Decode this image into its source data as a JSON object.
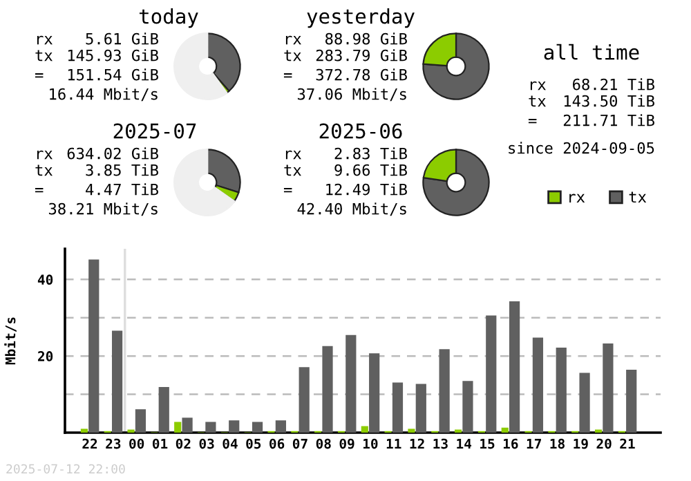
{
  "chart_data": [
    {
      "type": "donut",
      "title": "today",
      "categories": [
        null,
        null,
        null
      ],
      "values": [
        38.5,
        1.5,
        60
      ],
      "colors": [
        "#606060",
        "#8ccc00",
        "#efefef"
      ],
      "annotations": [
        "rx",
        "5.61 GiB",
        "tx",
        "145.93 GiB",
        "=",
        "151.54 GiB",
        "16.44 Mbit/s"
      ]
    },
    {
      "type": "donut",
      "title": "yesterday",
      "categories": [
        null,
        null
      ],
      "values": [
        76.1,
        23.9
      ],
      "colors": [
        "#606060",
        "#8ccc00"
      ],
      "annotations": [
        "rx",
        "88.98 GiB",
        "tx",
        "283.79 GiB",
        "=",
        "372.78 GiB",
        "37.06 Mbit/s"
      ]
    },
    {
      "type": "other",
      "title": "all time",
      "annotations": [
        "rx",
        "68.21 TiB",
        "tx",
        "143.50 TiB",
        "=",
        "211.71 TiB",
        "since 2024-09-05"
      ]
    },
    {
      "type": "donut",
      "title": "2025-07",
      "categories": [
        null,
        null,
        null
      ],
      "values": [
        29.9,
        4.8,
        65.3
      ],
      "colors": [
        "#606060",
        "#8ccc00",
        "#efefef"
      ],
      "annotations": [
        "rx",
        "634.02 GiB",
        "tx",
        "3.85 TiB",
        "=",
        "4.47 TiB",
        "38.21 Mbit/s"
      ]
    },
    {
      "type": "donut",
      "title": "2025-06",
      "categories": [
        null,
        null
      ],
      "values": [
        77.3,
        22.7
      ],
      "colors": [
        "#606060",
        "#8ccc00"
      ],
      "annotations": [
        "rx",
        "2.83 TiB",
        "tx",
        "9.66 TiB",
        "=",
        "12.49 TiB",
        "42.40 Mbit/s"
      ]
    },
    {
      "type": "bar",
      "ylabel": "Mbit/s",
      "categories": [
        "22",
        "23",
        "00",
        "01",
        "02",
        "03",
        "04",
        "05",
        "06",
        "07",
        "08",
        "09",
        "10",
        "11",
        "12",
        "13",
        "14",
        "15",
        "16",
        "17",
        "18",
        "19",
        "20",
        "21"
      ],
      "series": [
        {
          "name": "rx",
          "color": "#8ccc00",
          "values": [
            1.0,
            0.4,
            0.8,
            0.1,
            2.8,
            0.1,
            0.1,
            0.1,
            0.4,
            0.4,
            0.4,
            0.4,
            1.7,
            0.4,
            1.0,
            0.4,
            0.8,
            0.4,
            1.3,
            0.4,
            0.4,
            0.4,
            0.8,
            0.4
          ]
        },
        {
          "name": "tx",
          "color": "#606060",
          "values": [
            45.2,
            26.6,
            6.1,
            11.9,
            3.9,
            2.8,
            3.2,
            2.8,
            3.2,
            17.1,
            22.6,
            25.5,
            20.7,
            13.1,
            12.7,
            21.8,
            13.5,
            30.6,
            34.3,
            24.8,
            22.2,
            15.6,
            23.3,
            16.4
          ]
        }
      ],
      "ylim": [
        0,
        48
      ],
      "yticks": [
        {
          "value": 10,
          "label": null
        },
        20,
        {
          "value": 30,
          "label": null
        },
        40
      ],
      "grid": "y",
      "legend": "top right",
      "ref_lines": [
        {
          "axis": "x",
          "value": "00",
          "color": "#dddddd"
        }
      ],
      "annotations": [
        "2025-07-12 22:00"
      ]
    }
  ]
}
